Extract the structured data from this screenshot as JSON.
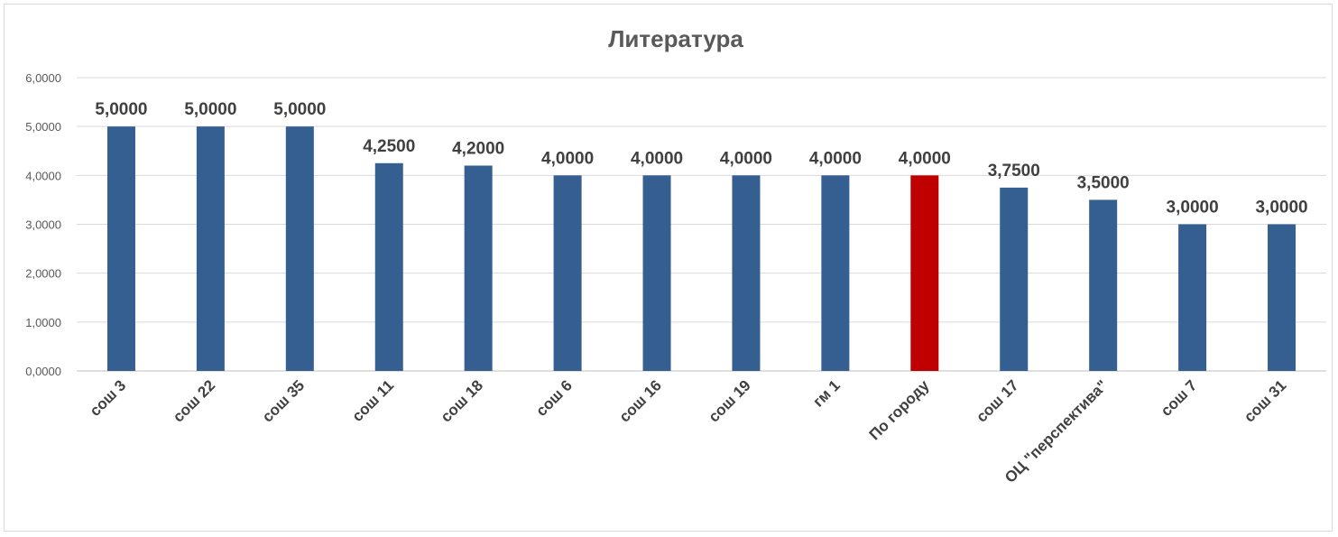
{
  "chart_data": {
    "type": "bar",
    "title": "Литература",
    "xlabel": "",
    "ylabel": "",
    "ylim": [
      0,
      6
    ],
    "yticks": [
      "0,0000",
      "1,0000",
      "2,0000",
      "3,0000",
      "4,0000",
      "5,0000",
      "6,0000"
    ],
    "grid": true,
    "legend": "none",
    "categories": [
      "сош 3",
      "сош 22",
      "сош 35",
      "сош 11",
      "сош 18",
      "сош 6",
      "сош 16",
      "сош 19",
      "гм 1",
      "По городу",
      "сош 17",
      "ОЦ \"перспектива\"",
      "сош 7",
      "сош 31"
    ],
    "values": [
      5.0,
      5.0,
      5.0,
      4.25,
      4.2,
      4.0,
      4.0,
      4.0,
      4.0,
      4.0,
      3.75,
      3.5,
      3.0,
      3.0
    ],
    "data_labels": [
      "5,0000",
      "5,0000",
      "5,0000",
      "4,2500",
      "4,2000",
      "4,0000",
      "4,0000",
      "4,0000",
      "4,0000",
      "4,0000",
      "3,7500",
      "3,5000",
      "3,0000",
      "3,0000"
    ],
    "bar_colors": [
      "#355E91",
      "#355E91",
      "#355E91",
      "#355E91",
      "#355E91",
      "#355E91",
      "#355E91",
      "#355E91",
      "#355E91",
      "#C00000",
      "#355E91",
      "#355E91",
      "#355E91",
      "#355E91"
    ]
  }
}
